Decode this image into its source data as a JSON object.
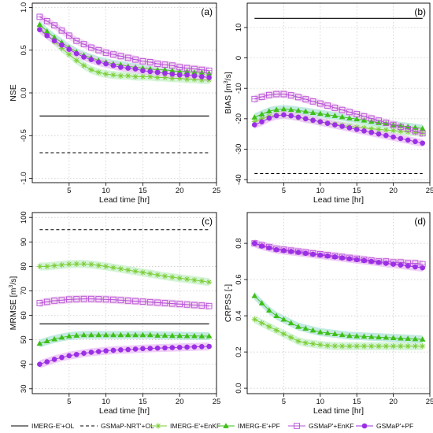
{
  "chart_data": [
    {
      "type": "line",
      "panel_label": "(a)",
      "xlabel": "Lead time [hr]",
      "ylabel": "NSE",
      "xlim": [
        0,
        25
      ],
      "ylim": [
        -1.05,
        1.05
      ],
      "xticks": [
        5,
        10,
        15,
        20,
        25
      ],
      "xtick_labels": [
        "5",
        "10",
        "15",
        "20",
        "25"
      ],
      "yticks": [
        -1.0,
        -0.5,
        0.0,
        0.5,
        1.0
      ],
      "ytick_labels": [
        "-1.0",
        "-0.5",
        "0.0",
        "0.5",
        "1.0"
      ],
      "grid": true,
      "x": [
        1,
        2,
        3,
        4,
        5,
        6,
        7,
        8,
        9,
        10,
        11,
        12,
        13,
        14,
        15,
        16,
        17,
        18,
        19,
        20,
        21,
        22,
        23,
        24
      ],
      "series": [
        {
          "name": "IMERG-E'+OL",
          "values": [
            -0.27,
            -0.27,
            -0.27,
            -0.27,
            -0.27,
            -0.27,
            -0.27,
            -0.27,
            -0.27,
            -0.27,
            -0.27,
            -0.27,
            -0.27,
            -0.27,
            -0.27,
            -0.27,
            -0.27,
            -0.27,
            -0.27,
            -0.27,
            -0.27,
            -0.27,
            -0.27,
            -0.27
          ]
        },
        {
          "name": "GSMaP-NRT'+OL",
          "values": [
            -0.7,
            -0.7,
            -0.7,
            -0.7,
            -0.7,
            -0.7,
            -0.7,
            -0.7,
            -0.7,
            -0.7,
            -0.7,
            -0.7,
            -0.7,
            -0.7,
            -0.7,
            -0.7,
            -0.7,
            -0.7,
            -0.7,
            -0.7,
            -0.7,
            -0.7,
            -0.7,
            -0.7
          ]
        },
        {
          "name": "IMERG-E'+EnKF",
          "values": [
            0.76,
            0.68,
            0.6,
            0.52,
            0.45,
            0.38,
            0.32,
            0.27,
            0.24,
            0.22,
            0.21,
            0.2,
            0.2,
            0.19,
            0.19,
            0.19,
            0.18,
            0.18,
            0.17,
            0.17,
            0.16,
            0.16,
            0.15,
            0.15
          ]
        },
        {
          "name": "IMERG-E'+PF",
          "values": [
            0.8,
            0.72,
            0.65,
            0.59,
            0.53,
            0.48,
            0.44,
            0.41,
            0.38,
            0.36,
            0.34,
            0.33,
            0.31,
            0.3,
            0.29,
            0.28,
            0.27,
            0.27,
            0.26,
            0.25,
            0.25,
            0.24,
            0.24,
            0.23
          ]
        },
        {
          "name": "GSMaP'+EnKF",
          "values": [
            0.89,
            0.84,
            0.79,
            0.73,
            0.67,
            0.61,
            0.57,
            0.53,
            0.5,
            0.47,
            0.45,
            0.43,
            0.41,
            0.39,
            0.37,
            0.36,
            0.34,
            0.33,
            0.32,
            0.3,
            0.29,
            0.28,
            0.27,
            0.26
          ]
        },
        {
          "name": "GSMaP'+PF",
          "values": [
            0.74,
            0.67,
            0.61,
            0.56,
            0.51,
            0.46,
            0.42,
            0.39,
            0.36,
            0.34,
            0.32,
            0.3,
            0.29,
            0.28,
            0.26,
            0.25,
            0.24,
            0.23,
            0.22,
            0.21,
            0.21,
            0.2,
            0.19,
            0.18
          ]
        }
      ]
    },
    {
      "type": "line",
      "panel_label": "(b)",
      "xlabel": "Lead time [hr]",
      "ylabel": "BIAS [m3/s]",
      "xlim": [
        0,
        25
      ],
      "ylim": [
        -41,
        18
      ],
      "xticks": [
        5,
        10,
        15,
        20,
        25
      ],
      "xtick_labels": [
        "5",
        "10",
        "15",
        "20",
        "25"
      ],
      "yticks": [
        -40,
        -30,
        -20,
        -10,
        0,
        10
      ],
      "ytick_labels": [
        "-40",
        "-30",
        "-20",
        "-10",
        "0",
        "10"
      ],
      "grid": true,
      "x": [
        1,
        2,
        3,
        4,
        5,
        6,
        7,
        8,
        9,
        10,
        11,
        12,
        13,
        14,
        15,
        16,
        17,
        18,
        19,
        20,
        21,
        22,
        23,
        24
      ],
      "series": [
        {
          "name": "IMERG-E'+OL",
          "values": [
            13,
            13,
            13,
            13,
            13,
            13,
            13,
            13,
            13,
            13,
            13,
            13,
            13,
            13,
            13,
            13,
            13,
            13,
            13,
            13,
            13,
            13,
            13,
            13
          ]
        },
        {
          "name": "GSMaP-NRT'+OL",
          "values": [
            -38,
            -38,
            -38,
            -38,
            -38,
            -38,
            -38,
            -38,
            -38,
            -38,
            -38,
            -38,
            -38,
            -38,
            -38,
            -38,
            -38,
            -38,
            -38,
            -38,
            -38,
            -38,
            -38,
            -38
          ]
        },
        {
          "name": "IMERG-E'+EnKF",
          "values": [
            -21,
            -20,
            -19.2,
            -18.8,
            -18.8,
            -19,
            -19.5,
            -20,
            -20.5,
            -21,
            -21.4,
            -21.8,
            -22.2,
            -22.5,
            -22.8,
            -23,
            -23.3,
            -23.5,
            -23.7,
            -23.9,
            -24.1,
            -24.3,
            -24.5,
            -24.7
          ]
        },
        {
          "name": "IMERG-E'+PF",
          "values": [
            -19.5,
            -18.5,
            -17.5,
            -17,
            -16.8,
            -17,
            -17.3,
            -17.6,
            -18,
            -18.3,
            -18.7,
            -19,
            -19.4,
            -19.8,
            -20.1,
            -20.5,
            -20.9,
            -21.3,
            -21.6,
            -22,
            -22.3,
            -22.6,
            -22.9,
            -23.2
          ]
        },
        {
          "name": "GSMaP'+EnKF",
          "values": [
            -13.5,
            -12.8,
            -12.2,
            -11.9,
            -11.9,
            -12.3,
            -12.9,
            -13.6,
            -14.3,
            -15,
            -15.7,
            -16.4,
            -17.1,
            -17.8,
            -18.5,
            -19.2,
            -19.9,
            -20.6,
            -21.3,
            -22,
            -22.7,
            -23.4,
            -24.1,
            -24.8
          ]
        },
        {
          "name": "GSMaP'+PF",
          "values": [
            -22,
            -21,
            -19.8,
            -19,
            -18.7,
            -19,
            -19.5,
            -20,
            -20.5,
            -21,
            -21.5,
            -22,
            -22.5,
            -23,
            -23.5,
            -24,
            -24.5,
            -25,
            -25.5,
            -26,
            -26.5,
            -27,
            -27.5,
            -28
          ]
        }
      ]
    },
    {
      "type": "line",
      "panel_label": "(c)",
      "xlabel": "Lead time [hr]",
      "ylabel": "MRMSE [m3/s]",
      "xlim": [
        0,
        25
      ],
      "ylim": [
        28,
        102
      ],
      "xticks": [
        5,
        10,
        15,
        20,
        25
      ],
      "xtick_labels": [
        "5",
        "10",
        "15",
        "20",
        "25"
      ],
      "yticks": [
        30,
        40,
        50,
        60,
        70,
        80,
        90,
        100
      ],
      "ytick_labels": [
        "30",
        "40",
        "50",
        "60",
        "70",
        "80",
        "90",
        "100"
      ],
      "grid": true,
      "x": [
        1,
        2,
        3,
        4,
        5,
        6,
        7,
        8,
        9,
        10,
        11,
        12,
        13,
        14,
        15,
        16,
        17,
        18,
        19,
        20,
        21,
        22,
        23,
        24
      ],
      "series": [
        {
          "name": "IMERG-E'+OL",
          "values": [
            56.5,
            56.5,
            56.5,
            56.5,
            56.5,
            56.5,
            56.5,
            56.5,
            56.5,
            56.5,
            56.5,
            56.5,
            56.5,
            56.5,
            56.5,
            56.5,
            56.5,
            56.5,
            56.5,
            56.5,
            56.5,
            56.5,
            56.5,
            56.5
          ]
        },
        {
          "name": "GSMaP-NRT'+OL",
          "values": [
            95,
            95,
            95,
            95,
            95,
            95,
            95,
            95,
            95,
            95,
            95,
            95,
            95,
            95,
            95,
            95,
            95,
            95,
            95,
            95,
            95,
            95,
            95,
            95
          ]
        },
        {
          "name": "IMERG-E'+EnKF",
          "values": [
            80,
            80,
            80.3,
            80.6,
            80.9,
            81,
            81,
            80.8,
            80.4,
            80,
            79.5,
            79,
            78.5,
            78,
            77.5,
            77,
            76.5,
            76,
            75.6,
            75.2,
            74.8,
            74.4,
            74,
            73.6
          ]
        },
        {
          "name": "IMERG-E'+PF",
          "values": [
            48.5,
            49.5,
            50.3,
            51,
            51.5,
            51.8,
            52,
            52,
            52,
            52,
            52,
            52,
            52,
            52,
            52,
            52,
            51.8,
            51.8,
            51.7,
            51.7,
            51.6,
            51.6,
            51.5,
            51.5
          ]
        },
        {
          "name": "GSMaP'+EnKF",
          "values": [
            65,
            65.5,
            66,
            66.2,
            66.5,
            66.6,
            66.7,
            66.7,
            66.6,
            66.5,
            66.4,
            66.2,
            66,
            65.8,
            65.6,
            65.4,
            65.2,
            65,
            64.8,
            64.6,
            64.4,
            64.2,
            64,
            63.8
          ]
        },
        {
          "name": "GSMaP'+PF",
          "values": [
            40,
            41,
            42,
            42.8,
            43.5,
            44,
            44.5,
            44.9,
            45.2,
            45.5,
            45.7,
            45.9,
            46,
            46.2,
            46.4,
            46.5,
            46.6,
            46.7,
            46.8,
            46.9,
            47,
            47.1,
            47.2,
            47.3
          ]
        }
      ]
    },
    {
      "type": "line",
      "panel_label": "(d)",
      "xlabel": "Lead time [hr]",
      "ylabel": "CRPSS [-]",
      "xlim": [
        0,
        25
      ],
      "ylim": [
        -0.03,
        0.97
      ],
      "xticks": [
        5,
        10,
        15,
        20,
        25
      ],
      "xtick_labels": [
        "5",
        "10",
        "15",
        "20",
        "25"
      ],
      "yticks": [
        0.0,
        0.2,
        0.4,
        0.6,
        0.8
      ],
      "ytick_labels": [
        "0.0",
        "0.2",
        "0.4",
        "0.6",
        "0.8"
      ],
      "grid": true,
      "x": [
        1,
        2,
        3,
        4,
        5,
        6,
        7,
        8,
        9,
        10,
        11,
        12,
        13,
        14,
        15,
        16,
        17,
        18,
        19,
        20,
        21,
        22,
        23,
        24
      ],
      "series": [
        {
          "name": "IMERG-E'+EnKF",
          "values": [
            0.38,
            0.36,
            0.34,
            0.32,
            0.3,
            0.28,
            0.26,
            0.25,
            0.245,
            0.24,
            0.235,
            0.233,
            0.232,
            0.232,
            0.232,
            0.232,
            0.232,
            0.232,
            0.232,
            0.232,
            0.232,
            0.232,
            0.232,
            0.232
          ]
        },
        {
          "name": "IMERG-E'+PF",
          "values": [
            0.51,
            0.47,
            0.43,
            0.4,
            0.38,
            0.36,
            0.34,
            0.33,
            0.32,
            0.31,
            0.305,
            0.3,
            0.295,
            0.29,
            0.288,
            0.286,
            0.284,
            0.282,
            0.28,
            0.278,
            0.276,
            0.274,
            0.272,
            0.27
          ]
        },
        {
          "name": "GSMaP'+EnKF",
          "values": [
            0.8,
            0.79,
            0.78,
            0.77,
            0.765,
            0.76,
            0.755,
            0.75,
            0.745,
            0.74,
            0.735,
            0.73,
            0.725,
            0.72,
            0.715,
            0.71,
            0.705,
            0.7,
            0.7,
            0.695,
            0.695,
            0.69,
            0.69,
            0.685
          ]
        },
        {
          "name": "GSMaP'+PF",
          "values": [
            0.8,
            0.785,
            0.775,
            0.765,
            0.76,
            0.755,
            0.75,
            0.745,
            0.74,
            0.735,
            0.73,
            0.725,
            0.72,
            0.715,
            0.71,
            0.705,
            0.7,
            0.695,
            0.69,
            0.685,
            0.68,
            0.675,
            0.67,
            0.665
          ]
        }
      ]
    }
  ],
  "legend": {
    "placement": "bottom",
    "entries": [
      {
        "label": "IMERG-E'+OL",
        "style": "solid-line"
      },
      {
        "label": "GSMaP-NRT'+OL",
        "style": "dashed-line"
      },
      {
        "label": "IMERG-E'+EnKF",
        "style": "green-asterisk"
      },
      {
        "label": "IMERG-E'+PF",
        "style": "green-triangle"
      },
      {
        "label": "GSMaP'+EnKF",
        "style": "purple-open-square"
      },
      {
        "label": "GSMaP'+PF",
        "style": "purple-filled-circle"
      }
    ]
  },
  "colors": {
    "ol_line": "#000000",
    "imerg_enkf": "#7ccd34",
    "imerg_enkf_band": "#cdf2d0",
    "imerg_pf": "#3fbf17",
    "imerg_pf_band": "#b8e6dd",
    "gsmap_enkf": "#b650d9",
    "gsmap_enkf_band": "#f1d2ef",
    "gsmap_pf": "#9b2fe6",
    "gsmap_pf_band": "#ecc6f5",
    "grid": "#c4c4c4"
  }
}
